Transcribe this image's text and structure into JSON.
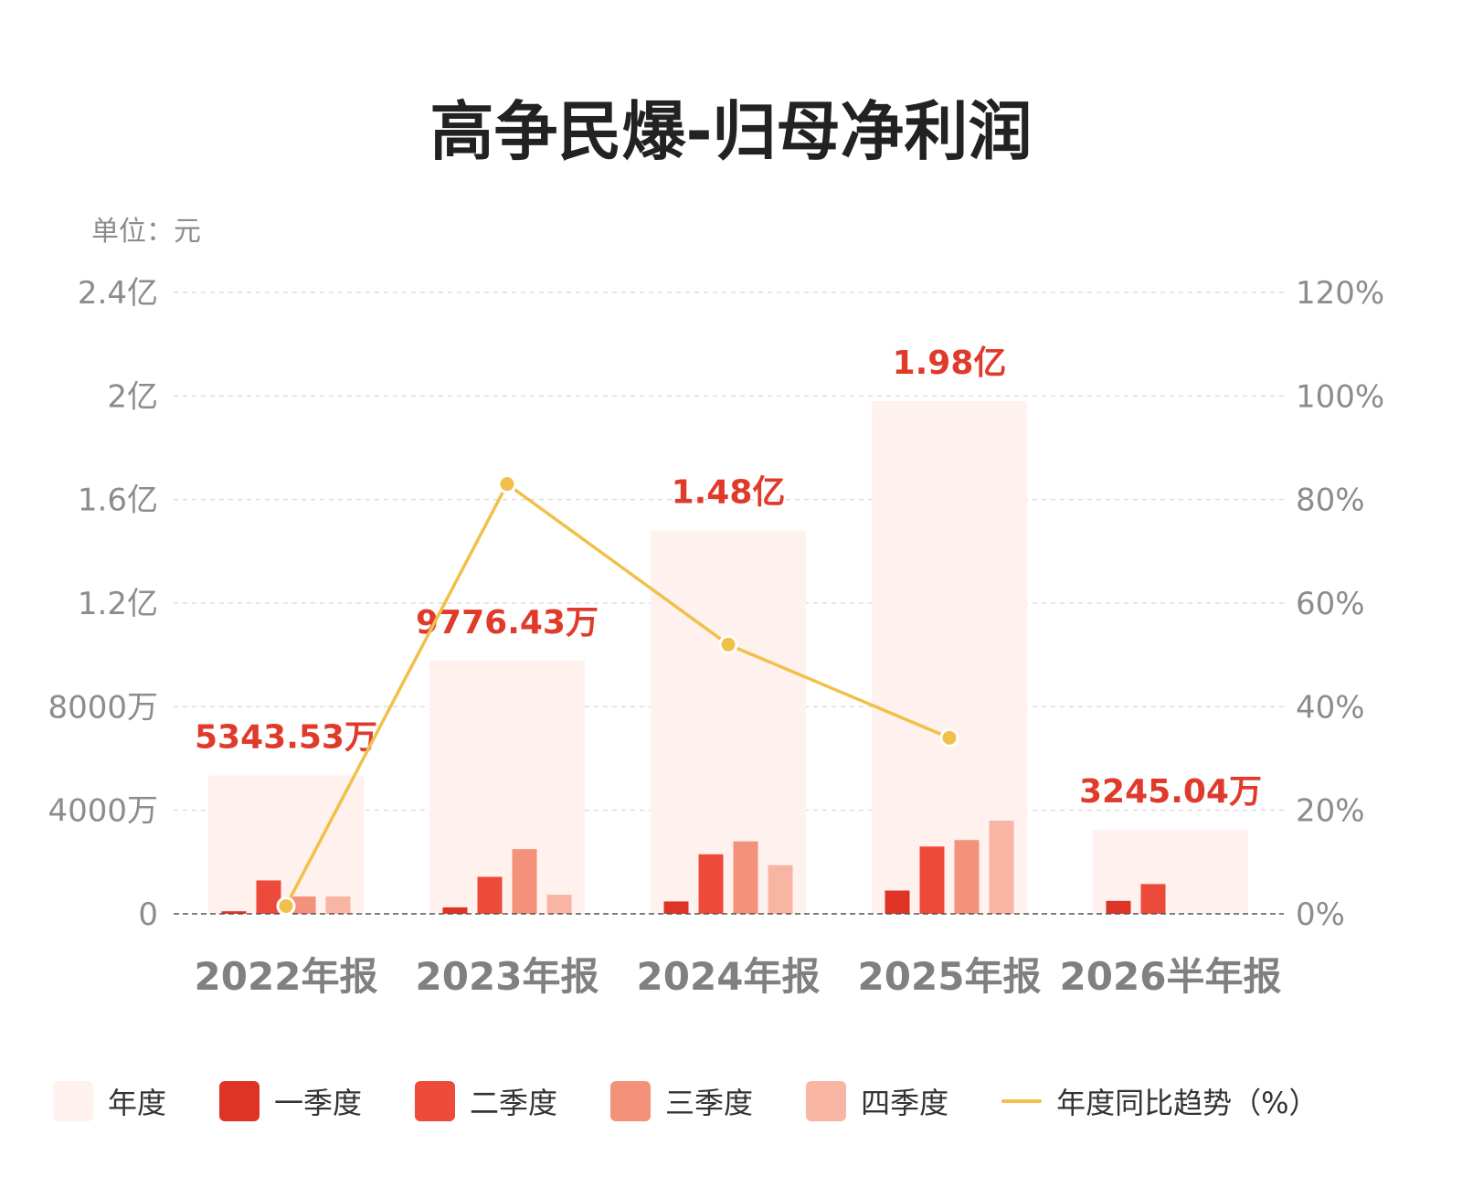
{
  "chart_data": {
    "type": "bar",
    "title": "高争民爆-归母净利润",
    "unit_label": "单位：元",
    "categories": [
      "2022年报",
      "2023年报",
      "2024年报",
      "2025年报",
      "2026半年报"
    ],
    "annual": {
      "name": "年度",
      "values": [
        53435300,
        97764300,
        148000000,
        198000000,
        32450400
      ],
      "labels": [
        "5343.53万",
        "9776.43万",
        "1.48亿",
        "1.98亿",
        "3245.04万"
      ]
    },
    "series": [
      {
        "name": "一季度",
        "values": [
          1000000,
          2500000,
          4800000,
          9000000,
          5000000
        ]
      },
      {
        "name": "二季度",
        "values": [
          12900000,
          14300000,
          23000000,
          26000000,
          11500000
        ]
      },
      {
        "name": "三季度",
        "values": [
          6700000,
          25000000,
          28000000,
          28500000,
          null
        ]
      },
      {
        "name": "四季度",
        "values": [
          6700000,
          7400000,
          18800000,
          36000000,
          null
        ]
      }
    ],
    "line": {
      "name": "年度同比趋势（%）",
      "values": [
        1.5,
        83,
        52,
        34,
        null
      ]
    },
    "y_left": {
      "ylim": [
        0,
        240000000
      ],
      "ticks": [
        0,
        40000000,
        80000000,
        120000000,
        160000000,
        200000000,
        240000000
      ],
      "tick_labels": [
        "0",
        "4000万",
        "8000万",
        "1.2亿",
        "1.6亿",
        "2亿",
        "2.4亿"
      ]
    },
    "y_right": {
      "ylim": [
        0,
        120
      ],
      "ticks": [
        0,
        20,
        40,
        60,
        80,
        100,
        120
      ],
      "tick_labels": [
        "0%",
        "20%",
        "40%",
        "60%",
        "80%",
        "100%",
        "120%"
      ]
    },
    "grid": true,
    "legend_position": "bottom",
    "colors": {
      "annual": "#fff1ed",
      "q1": "#de3425",
      "q2": "#ec4a3a",
      "q3": "#f3917a",
      "q4": "#f9b5a3",
      "line": "#f1c04a",
      "value_label": "#e03a2b",
      "grid": "#dddddd",
      "axis_text": "#8c8c8c"
    }
  }
}
